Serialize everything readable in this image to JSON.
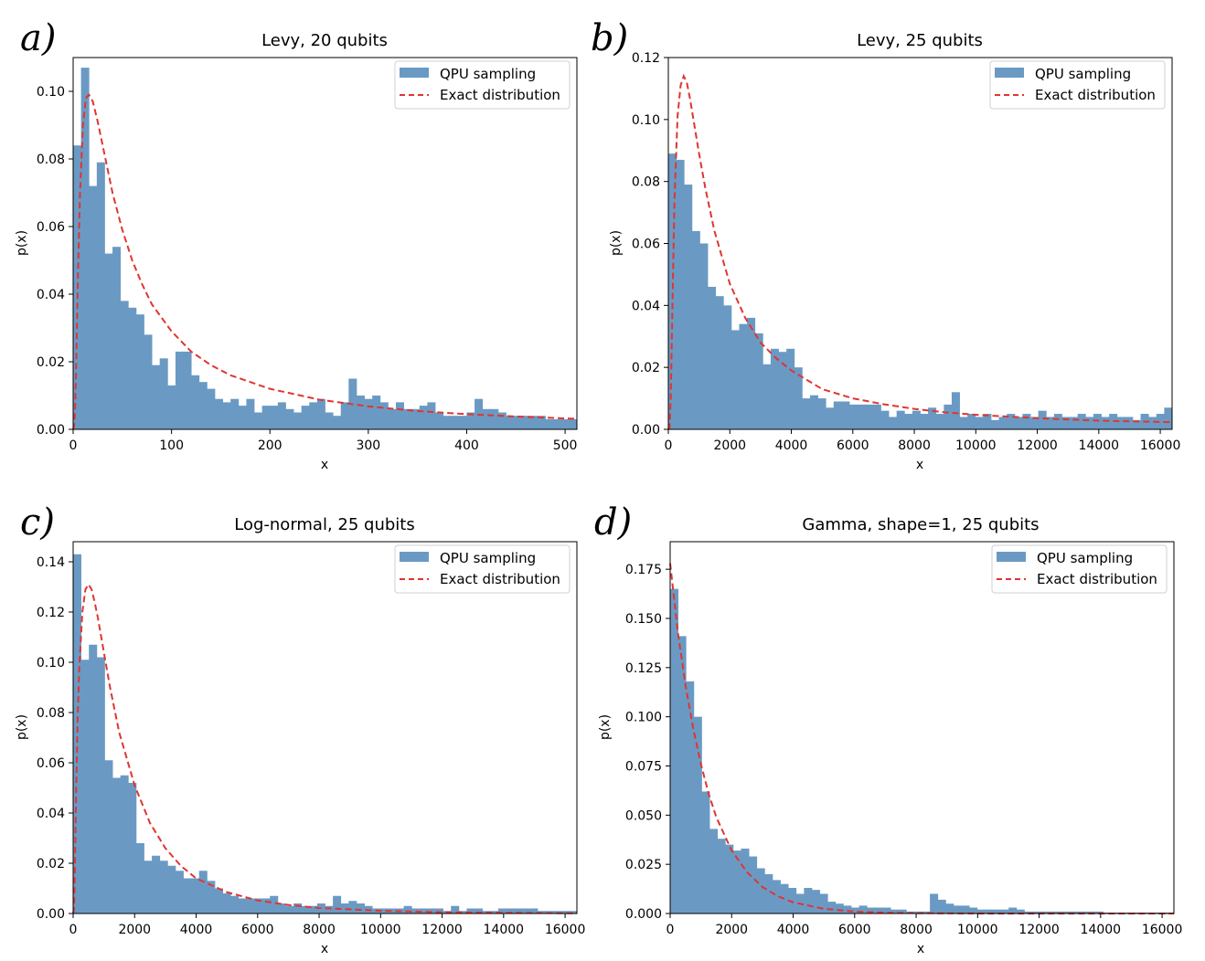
{
  "colors": {
    "bar": "#6a9ac4",
    "line": "#e03530",
    "frame": "#000000"
  },
  "chart_data": [
    {
      "panel": "a)",
      "type": "bar",
      "title": "Levy, 20 qubits",
      "xlabel": "x",
      "ylabel": "p(x)",
      "xlim": [
        0,
        512
      ],
      "ylim": [
        0,
        0.11
      ],
      "xticks": [
        0,
        100,
        200,
        300,
        400,
        500
      ],
      "xtick_labels": [
        "0",
        "100",
        "200",
        "300",
        "400",
        "500"
      ],
      "yticks": [
        0,
        0.02,
        0.04,
        0.06,
        0.08,
        0.1
      ],
      "ytick_labels": [
        "0.00",
        "0.02",
        "0.04",
        "0.06",
        "0.08",
        "0.10"
      ],
      "legend": [
        "QPU sampling",
        "Exact distribution"
      ],
      "bin_width": 8,
      "values": [
        0.084,
        0.107,
        0.072,
        0.079,
        0.052,
        0.054,
        0.038,
        0.036,
        0.034,
        0.028,
        0.019,
        0.021,
        0.013,
        0.023,
        0.023,
        0.016,
        0.014,
        0.012,
        0.009,
        0.008,
        0.009,
        0.007,
        0.009,
        0.005,
        0.007,
        0.007,
        0.008,
        0.006,
        0.005,
        0.007,
        0.008,
        0.009,
        0.005,
        0.004,
        0.008,
        0.015,
        0.01,
        0.009,
        0.01,
        0.008,
        0.006,
        0.008,
        0.006,
        0.006,
        0.007,
        0.008,
        0.005,
        0.004,
        0.004,
        0.004,
        0.005,
        0.009,
        0.006,
        0.006,
        0.005,
        0.004,
        0.004,
        0.004,
        0.004,
        0.004,
        0.003,
        0.003,
        0.003,
        0.003
      ],
      "exact": {
        "x": [
          0,
          1,
          2,
          3,
          5,
          7,
          10,
          13,
          16,
          20,
          25,
          30,
          35,
          40,
          50,
          60,
          70,
          80,
          100,
          120,
          140,
          160,
          180,
          200,
          250,
          300,
          350,
          400,
          450,
          512
        ],
        "y": [
          0,
          0.001,
          0.006,
          0.018,
          0.047,
          0.07,
          0.09,
          0.098,
          0.099,
          0.097,
          0.091,
          0.084,
          0.077,
          0.07,
          0.059,
          0.05,
          0.043,
          0.037,
          0.029,
          0.023,
          0.019,
          0.016,
          0.014,
          0.012,
          0.0088,
          0.0068,
          0.0054,
          0.0045,
          0.0038,
          0.0031
        ]
      }
    },
    {
      "panel": "b)",
      "type": "bar",
      "title": "Levy, 25 qubits",
      "xlabel": "x",
      "ylabel": "p(x)",
      "xlim": [
        0,
        16384
      ],
      "ylim": [
        0,
        0.12
      ],
      "xticks": [
        0,
        2000,
        4000,
        6000,
        8000,
        10000,
        12000,
        14000,
        16000
      ],
      "xtick_labels": [
        "0",
        "2000",
        "4000",
        "6000",
        "8000",
        "10000",
        "12000",
        "14000",
        "16000"
      ],
      "yticks": [
        0,
        0.02,
        0.04,
        0.06,
        0.08,
        0.1,
        0.12
      ],
      "ytick_labels": [
        "0.00",
        "0.02",
        "0.04",
        "0.06",
        "0.08",
        "0.10",
        "0.12"
      ],
      "legend": [
        "QPU sampling",
        "Exact distribution"
      ],
      "bin_width": 256,
      "values": [
        0.089,
        0.087,
        0.079,
        0.064,
        0.06,
        0.046,
        0.043,
        0.04,
        0.032,
        0.034,
        0.036,
        0.031,
        0.021,
        0.026,
        0.025,
        0.026,
        0.02,
        0.01,
        0.011,
        0.01,
        0.007,
        0.009,
        0.009,
        0.008,
        0.008,
        0.008,
        0.008,
        0.006,
        0.004,
        0.006,
        0.005,
        0.006,
        0.005,
        0.007,
        0.005,
        0.008,
        0.012,
        0.004,
        0.005,
        0.004,
        0.005,
        0.003,
        0.004,
        0.005,
        0.004,
        0.005,
        0.004,
        0.006,
        0.004,
        0.005,
        0.004,
        0.004,
        0.005,
        0.004,
        0.005,
        0.004,
        0.005,
        0.004,
        0.004,
        0.003,
        0.005,
        0.004,
        0.005,
        0.007
      ],
      "exact": {
        "x": [
          0,
          40,
          80,
          120,
          200,
          300,
          400,
          500,
          600,
          700,
          800,
          1000,
          1200,
          1500,
          2000,
          2500,
          3000,
          3500,
          4000,
          5000,
          6000,
          7000,
          8000,
          9000,
          10000,
          12000,
          14000,
          16384
        ],
        "y": [
          0,
          0.0005,
          0.01,
          0.033,
          0.074,
          0.101,
          0.111,
          0.114,
          0.112,
          0.107,
          0.101,
          0.089,
          0.078,
          0.064,
          0.047,
          0.036,
          0.028,
          0.023,
          0.019,
          0.013,
          0.01,
          0.0081,
          0.0066,
          0.0055,
          0.0047,
          0.0036,
          0.0028,
          0.0023
        ]
      }
    },
    {
      "panel": "c)",
      "type": "bar",
      "title": "Log-normal, 25 qubits",
      "xlabel": "x",
      "ylabel": "p(x)",
      "xlim": [
        0,
        16384
      ],
      "ylim": [
        0,
        0.148
      ],
      "xticks": [
        0,
        2000,
        4000,
        6000,
        8000,
        10000,
        12000,
        14000,
        16000
      ],
      "xtick_labels": [
        "0",
        "2000",
        "4000",
        "6000",
        "8000",
        "10000",
        "12000",
        "14000",
        "16000"
      ],
      "yticks": [
        0,
        0.02,
        0.04,
        0.06,
        0.08,
        0.1,
        0.12,
        0.14
      ],
      "ytick_labels": [
        "0.00",
        "0.02",
        "0.04",
        "0.06",
        "0.08",
        "0.10",
        "0.12",
        "0.14"
      ],
      "legend": [
        "QPU sampling",
        "Exact distribution"
      ],
      "bin_width": 256,
      "values": [
        0.143,
        0.101,
        0.107,
        0.102,
        0.061,
        0.054,
        0.055,
        0.052,
        0.028,
        0.021,
        0.023,
        0.021,
        0.019,
        0.017,
        0.014,
        0.014,
        0.017,
        0.013,
        0.01,
        0.008,
        0.007,
        0.006,
        0.006,
        0.006,
        0.006,
        0.007,
        0.004,
        0.003,
        0.004,
        0.003,
        0.003,
        0.004,
        0.003,
        0.007,
        0.004,
        0.005,
        0.004,
        0.003,
        0.002,
        0.002,
        0.002,
        0.002,
        0.003,
        0.002,
        0.002,
        0.002,
        0.002,
        0.001,
        0.003,
        0.001,
        0.002,
        0.002,
        0.001,
        0.001,
        0.002,
        0.002,
        0.002,
        0.002,
        0.002,
        0.001,
        0.001,
        0.001,
        0.001,
        0.001
      ],
      "exact": {
        "x": [
          0,
          30,
          60,
          100,
          150,
          200,
          300,
          400,
          500,
          600,
          700,
          800,
          1000,
          1200,
          1500,
          2000,
          2500,
          3000,
          3500,
          4000,
          5000,
          6000,
          7000,
          8000,
          10000,
          12000,
          14000,
          16384
        ],
        "y": [
          0,
          0.002,
          0.02,
          0.05,
          0.079,
          0.098,
          0.12,
          0.129,
          0.131,
          0.129,
          0.124,
          0.118,
          0.104,
          0.09,
          0.072,
          0.051,
          0.036,
          0.026,
          0.019,
          0.014,
          0.0085,
          0.0052,
          0.0034,
          0.0022,
          0.0011,
          0.0005,
          0.0003,
          0.0001
        ]
      }
    },
    {
      "panel": "d)",
      "type": "bar",
      "title": "Gamma, shape=1, 25 qubits",
      "xlabel": "x",
      "ylabel": "p(x)",
      "xlim": [
        0,
        16384
      ],
      "ylim": [
        0,
        0.189
      ],
      "xticks": [
        0,
        2000,
        4000,
        6000,
        8000,
        10000,
        12000,
        14000,
        16000
      ],
      "xtick_labels": [
        "0",
        "2000",
        "4000",
        "6000",
        "8000",
        "10000",
        "12000",
        "14000",
        "16000"
      ],
      "yticks": [
        0,
        0.025,
        0.05,
        0.075,
        0.1,
        0.125,
        0.15,
        0.175
      ],
      "ytick_labels": [
        "0.000",
        "0.025",
        "0.050",
        "0.075",
        "0.100",
        "0.125",
        "0.150",
        "0.175"
      ],
      "legend": [
        "QPU sampling",
        "Exact distribution"
      ],
      "bin_width": 256,
      "values": [
        0.165,
        0.141,
        0.118,
        0.1,
        0.062,
        0.043,
        0.038,
        0.035,
        0.032,
        0.033,
        0.029,
        0.023,
        0.02,
        0.017,
        0.015,
        0.013,
        0.01,
        0.013,
        0.012,
        0.01,
        0.006,
        0.005,
        0.004,
        0.003,
        0.004,
        0.003,
        0.003,
        0.003,
        0.002,
        0.002,
        0.001,
        0.001,
        0.001,
        0.01,
        0.007,
        0.005,
        0.004,
        0.004,
        0.003,
        0.002,
        0.002,
        0.002,
        0.002,
        0.003,
        0.002,
        0.001,
        0.001,
        0.001,
        0.001,
        0.001,
        0.001,
        0.001,
        0.001,
        0.001,
        0.001,
        0.0005,
        0.0005,
        0.0005,
        0.0005,
        0.0005,
        0.0005,
        0.0005,
        0.0005,
        0.0005
      ],
      "exact": {
        "x": [
          0,
          250,
          500,
          750,
          1000,
          1250,
          1500,
          2000,
          2500,
          3000,
          3500,
          4000,
          5000,
          6000,
          7000,
          8000,
          10000,
          12000,
          14000,
          16384
        ],
        "y": [
          0.178,
          0.143,
          0.116,
          0.094,
          0.076,
          0.061,
          0.049,
          0.032,
          0.021,
          0.0135,
          0.0088,
          0.0057,
          0.0024,
          0.001,
          0.0004,
          0.0002,
          3e-05,
          5e-06,
          1e-06,
          0
        ]
      }
    }
  ]
}
